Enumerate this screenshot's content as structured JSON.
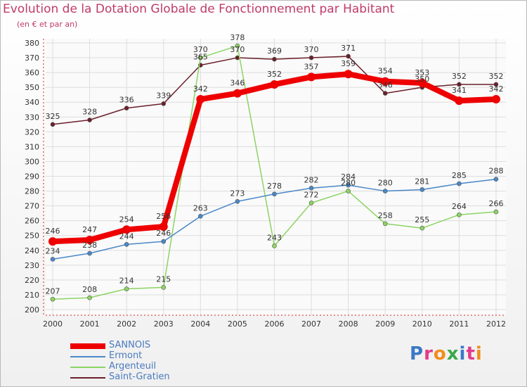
{
  "chart_data": {
    "type": "line",
    "title": "Evolution de la Dotation Globale de Fonctionnement par Habitant",
    "subtitle": "(en € et par an)",
    "categories": [
      "2000",
      "2001",
      "2002",
      "2003",
      "2004",
      "2005",
      "2006",
      "2007",
      "2008",
      "2009",
      "2010",
      "2011",
      "2012"
    ],
    "ylim": [
      200,
      380
    ],
    "yticks": [
      200,
      210,
      220,
      230,
      240,
      250,
      260,
      270,
      280,
      290,
      300,
      310,
      320,
      330,
      340,
      350,
      360,
      370,
      380
    ],
    "grid": true,
    "series": [
      {
        "name": "SANNOIS",
        "color": "#ee0000",
        "values": [
          246,
          247,
          254,
          256,
          342,
          346,
          352,
          357,
          359,
          354,
          353,
          341,
          342
        ]
      },
      {
        "name": "Ermont",
        "color": "#4a88c8",
        "values": [
          234,
          238,
          244,
          246,
          263,
          273,
          278,
          282,
          284,
          280,
          281,
          285,
          288
        ]
      },
      {
        "name": "Argenteuil",
        "color": "#8cd463",
        "values": [
          207,
          208,
          214,
          215,
          370,
          378,
          243,
          272,
          280,
          258,
          255,
          264,
          266
        ]
      },
      {
        "name": "Saint-Gratien",
        "color": "#6b1f2a",
        "values": [
          325,
          328,
          336,
          339,
          365,
          370,
          369,
          370,
          371,
          346,
          350,
          352,
          352
        ]
      }
    ]
  },
  "logo": {
    "text": "Proxiti"
  }
}
